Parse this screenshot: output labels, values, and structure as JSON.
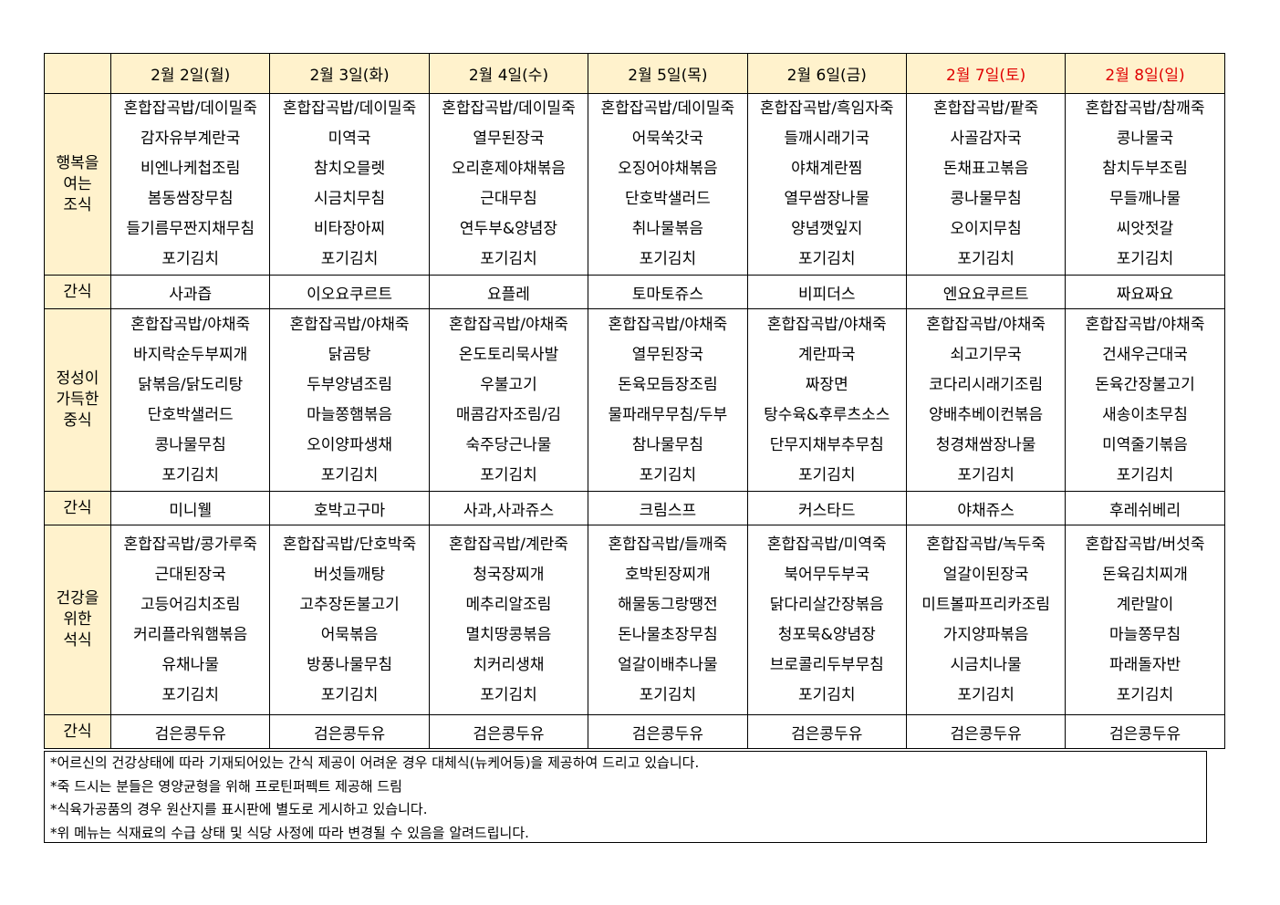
{
  "header": {
    "days": [
      {
        "label": "2월  2일(월)",
        "weekend": false
      },
      {
        "label": "2월  3일(화)",
        "weekend": false
      },
      {
        "label": "2월  4일(수)",
        "weekend": false
      },
      {
        "label": "2월  5일(목)",
        "weekend": false
      },
      {
        "label": "2월  6일(금)",
        "weekend": false
      },
      {
        "label": "2월  7일(토)",
        "weekend": true
      },
      {
        "label": "2월  8일(일)",
        "weekend": true
      }
    ],
    "weekend_color": "#E00000",
    "header_bg": "#FFF2CC"
  },
  "rows": [
    {
      "label": "행복을\n여는\n조식",
      "type": "meal",
      "cells": [
        [
          "혼합잡곡밥/데이밀죽",
          "감자유부계란국",
          "비엔나케첩조림",
          "봄동쌈장무침",
          "들기름무짠지채무침",
          "포기김치"
        ],
        [
          "혼합잡곡밥/데이밀죽",
          "미역국",
          "참치오믈렛",
          "시금치무침",
          "비타장아찌",
          "포기김치"
        ],
        [
          "혼합잡곡밥/데이밀죽",
          "열무된장국",
          "오리훈제야채볶음",
          "근대무침",
          "연두부&양념장",
          "포기김치"
        ],
        [
          "혼합잡곡밥/데이밀죽",
          "어묵쑥갓국",
          "오징어야채볶음",
          "단호박샐러드",
          "취나물볶음",
          "포기김치"
        ],
        [
          "혼합잡곡밥/흑임자죽",
          "들깨시래기국",
          "야채계란찜",
          "열무쌈장나물",
          "양념깻잎지",
          "포기김치"
        ],
        [
          "혼합잡곡밥/팥죽",
          "사골감자국",
          "돈채표고볶음",
          "콩나물무침",
          "오이지무침",
          "포기김치"
        ],
        [
          "혼합잡곡밥/참깨죽",
          "콩나물국",
          "참치두부조림",
          "무들깨나물",
          "씨앗젓갈",
          "포기김치"
        ]
      ]
    },
    {
      "label": "간식",
      "type": "snack",
      "cells": [
        "사과즙",
        "이오요쿠르트",
        "요플레",
        "토마토쥬스",
        "비피더스",
        "엔요요쿠르트",
        "짜요짜요"
      ]
    },
    {
      "label": "정성이\n가득한\n중식",
      "type": "meal",
      "cells": [
        [
          "혼합잡곡밥/야채죽",
          "바지락순두부찌개",
          "닭볶음/닭도리탕",
          "단호박샐러드",
          "콩나물무침",
          "포기김치"
        ],
        [
          "혼합잡곡밥/야채죽",
          "닭곰탕",
          "두부양념조림",
          "마늘쫑햄볶음",
          "오이양파생채",
          "포기김치"
        ],
        [
          "혼합잡곡밥/야채죽",
          "온도토리묵사발",
          "우불고기",
          "매콤감자조림/김",
          "숙주당근나물",
          "포기김치"
        ],
        [
          "혼합잡곡밥/야채죽",
          "열무된장국",
          "돈육모듬장조림",
          "물파래무무침/두부",
          "참나물무침",
          "포기김치"
        ],
        [
          "혼합잡곡밥/야채죽",
          "계란파국",
          "짜장면",
          "탕수육&후루츠소스",
          "단무지채부추무침",
          "포기김치"
        ],
        [
          "혼합잡곡밥/야채죽",
          "쇠고기무국",
          "코다리시래기조림",
          "양배추베이컨볶음",
          "청경채쌈장나물",
          "포기김치"
        ],
        [
          "혼합잡곡밥/야채죽",
          "건새우근대국",
          "돈육간장불고기",
          "새송이초무침",
          "미역줄기볶음",
          "포기김치"
        ]
      ]
    },
    {
      "label": "간식",
      "type": "snack",
      "cells": [
        "미니웰",
        "호박고구마",
        "사과,사과쥬스",
        "크림스프",
        "커스타드",
        "야채쥬스",
        "후레쉬베리"
      ]
    },
    {
      "label": "건강을\n위한\n석식",
      "type": "meal",
      "cells": [
        [
          "혼합잡곡밥/콩가루죽",
          "근대된장국",
          "고등어김치조림",
          "커리플라워햄볶음",
          "유채나물",
          "포기김치"
        ],
        [
          "혼합잡곡밥/단호박죽",
          "버섯들깨탕",
          "고추장돈불고기",
          "어묵볶음",
          "방풍나물무침",
          "포기김치"
        ],
        [
          "혼합잡곡밥/계란죽",
          "청국장찌개",
          "메추리알조림",
          "멸치땅콩볶음",
          "치커리생채",
          "포기김치"
        ],
        [
          "혼합잡곡밥/들깨죽",
          "호박된장찌개",
          "해물동그랑땡전",
          "돈나물초장무침",
          "얼갈이배추나물",
          "포기김치"
        ],
        [
          "혼합잡곡밥/미역죽",
          "북어무두부국",
          "닭다리살간장볶음",
          "청포묵&양념장",
          "브로콜리두부무침",
          "포기김치"
        ],
        [
          "혼합잡곡밥/녹두죽",
          "얼갈이된장국",
          "미트볼파프리카조림",
          "가지양파볶음",
          "시금치나물",
          "포기김치"
        ],
        [
          "혼합잡곡밥/버섯죽",
          "돈육김치찌개",
          "계란말이",
          "마늘쫑무침",
          "파래돌자반",
          "포기김치"
        ]
      ]
    },
    {
      "label": "간식",
      "type": "snack",
      "cells": [
        "검은콩두유",
        "검은콩두유",
        "검은콩두유",
        "검은콩두유",
        "검은콩두유",
        "검은콩두유",
        "검은콩두유"
      ]
    }
  ],
  "notes": [
    "*어르신의 건강상태에 따라 기재되어있는 간식 제공이 어려운 경우 대체식(뉴케어등)을 제공하여 드리고 있습니다.",
    "*죽 드시는 분들은 영양균형을 위해 프로틴퍼펙트 제공해 드림",
    "*식육가공품의 경우 원산지를 표시판에 별도로 게시하고 있습니다.",
    "*위 메뉴는 식재료의 수급 상태 및 식당 사정에 따라 변경될 수 있음을 알려드립니다."
  ]
}
